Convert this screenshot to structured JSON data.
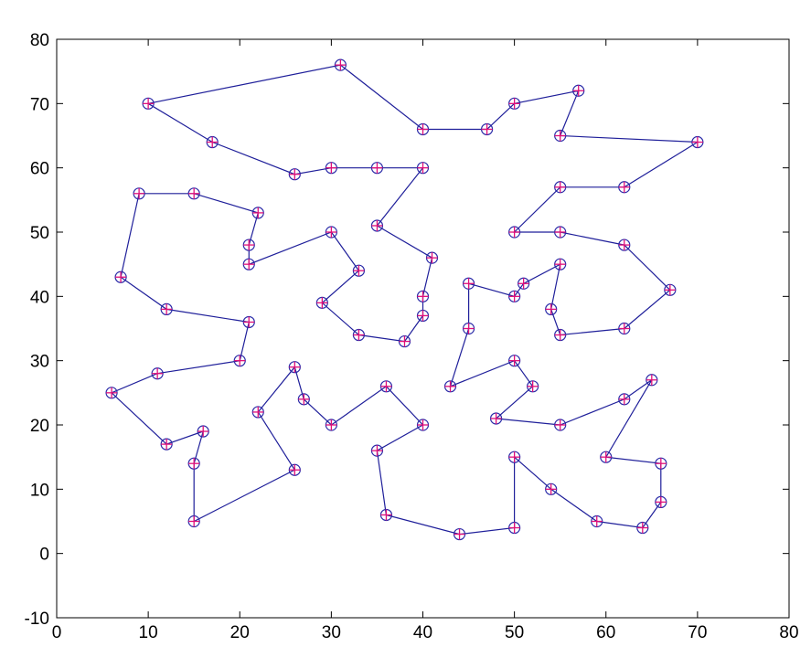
{
  "chart_data": {
    "type": "line",
    "title": "",
    "xlabel": "",
    "ylabel": "",
    "xlim": [
      0,
      80
    ],
    "ylim": [
      -10,
      80
    ],
    "xticks": [
      "0",
      "10",
      "20",
      "30",
      "40",
      "50",
      "60",
      "70",
      "80"
    ],
    "yticks": [
      "-10",
      "0",
      "10",
      "20",
      "30",
      "40",
      "50",
      "60",
      "70",
      "80"
    ],
    "grid": false,
    "marker": "circle-with-plus",
    "colors": {
      "line": "#1f1f9a",
      "marker_circle": "#2a2aa8",
      "marker_cross": "#e0107a"
    },
    "series": [
      {
        "x": [
          10,
          31,
          40,
          47,
          50,
          57,
          55,
          70,
          62,
          55,
          50,
          55,
          62,
          67,
          62,
          55,
          54,
          55,
          51,
          50,
          45,
          45,
          43,
          50,
          52,
          48,
          55,
          62,
          65,
          60,
          66,
          66,
          64,
          59,
          54,
          50,
          50,
          44,
          36,
          35,
          40,
          36,
          30,
          27,
          26,
          22,
          26,
          15,
          15,
          16,
          12,
          6,
          11,
          20,
          21,
          12,
          7,
          9,
          15,
          22,
          21,
          21,
          30,
          33,
          29,
          33,
          38,
          40,
          40,
          41,
          35,
          40,
          35,
          30,
          26,
          17,
          10
        ],
        "y": [
          70,
          76,
          66,
          66,
          70,
          72,
          65,
          64,
          57,
          57,
          50,
          50,
          48,
          41,
          35,
          34,
          38,
          45,
          42,
          40,
          42,
          35,
          26,
          30,
          26,
          21,
          20,
          24,
          27,
          15,
          14,
          8,
          4,
          5,
          10,
          15,
          4,
          3,
          6,
          16,
          20,
          26,
          20,
          24,
          29,
          22,
          13,
          5,
          14,
          19,
          17,
          25,
          28,
          30,
          36,
          38,
          43,
          56,
          56,
          53,
          48,
          45,
          50,
          44,
          39,
          34,
          33,
          37,
          40,
          46,
          51,
          60,
          60,
          60,
          59,
          64,
          70
        ]
      }
    ]
  }
}
